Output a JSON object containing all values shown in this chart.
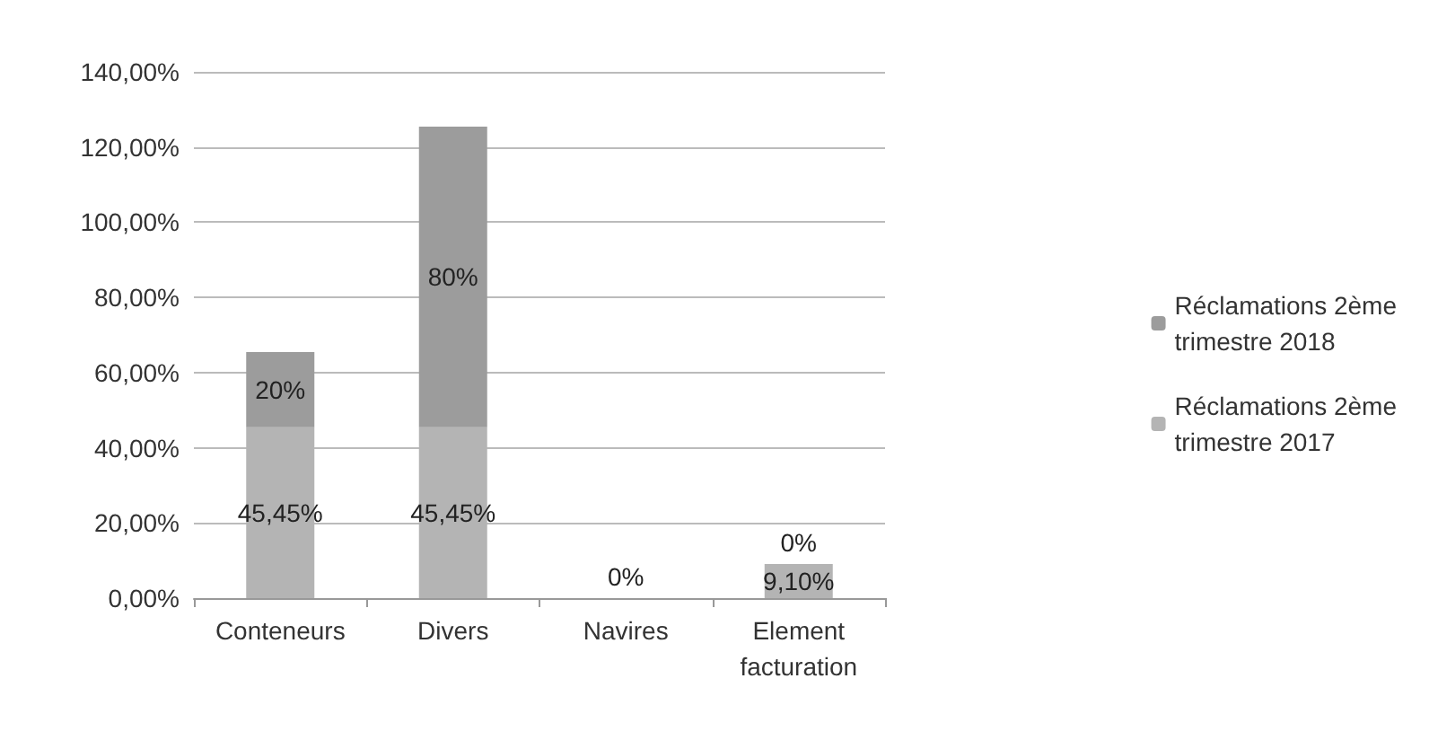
{
  "chart_data": {
    "type": "bar",
    "stacked": true,
    "categories": [
      "Conteneurs",
      "Divers",
      "Navires",
      "Element\nfacturation"
    ],
    "series": [
      {
        "name": "Réclamations 2ème trimestre 2017",
        "color": "#b4b4b4",
        "values": [
          45.45,
          45.45,
          0,
          9.1
        ],
        "value_labels": [
          "45,45%",
          "45,45%",
          null,
          "9,10%"
        ]
      },
      {
        "name": "Réclamations 2ème trimestre 2018",
        "color": "#9c9c9c",
        "values": [
          20,
          80,
          0,
          0
        ],
        "value_labels": [
          "20%",
          "80%",
          "0%",
          "0%"
        ]
      }
    ],
    "ylim": [
      0,
      140
    ],
    "yticks": [
      {
        "value": 0,
        "label": "0,00%"
      },
      {
        "value": 20,
        "label": "20,00%"
      },
      {
        "value": 40,
        "label": "40,00%"
      },
      {
        "value": 60,
        "label": "60,00%"
      },
      {
        "value": 80,
        "label": "80,00%"
      },
      {
        "value": 100,
        "label": "100,00%"
      },
      {
        "value": 120,
        "label": "120,00%"
      },
      {
        "value": 140,
        "label": "140,00%"
      }
    ],
    "grid": "y",
    "legend": "right"
  }
}
